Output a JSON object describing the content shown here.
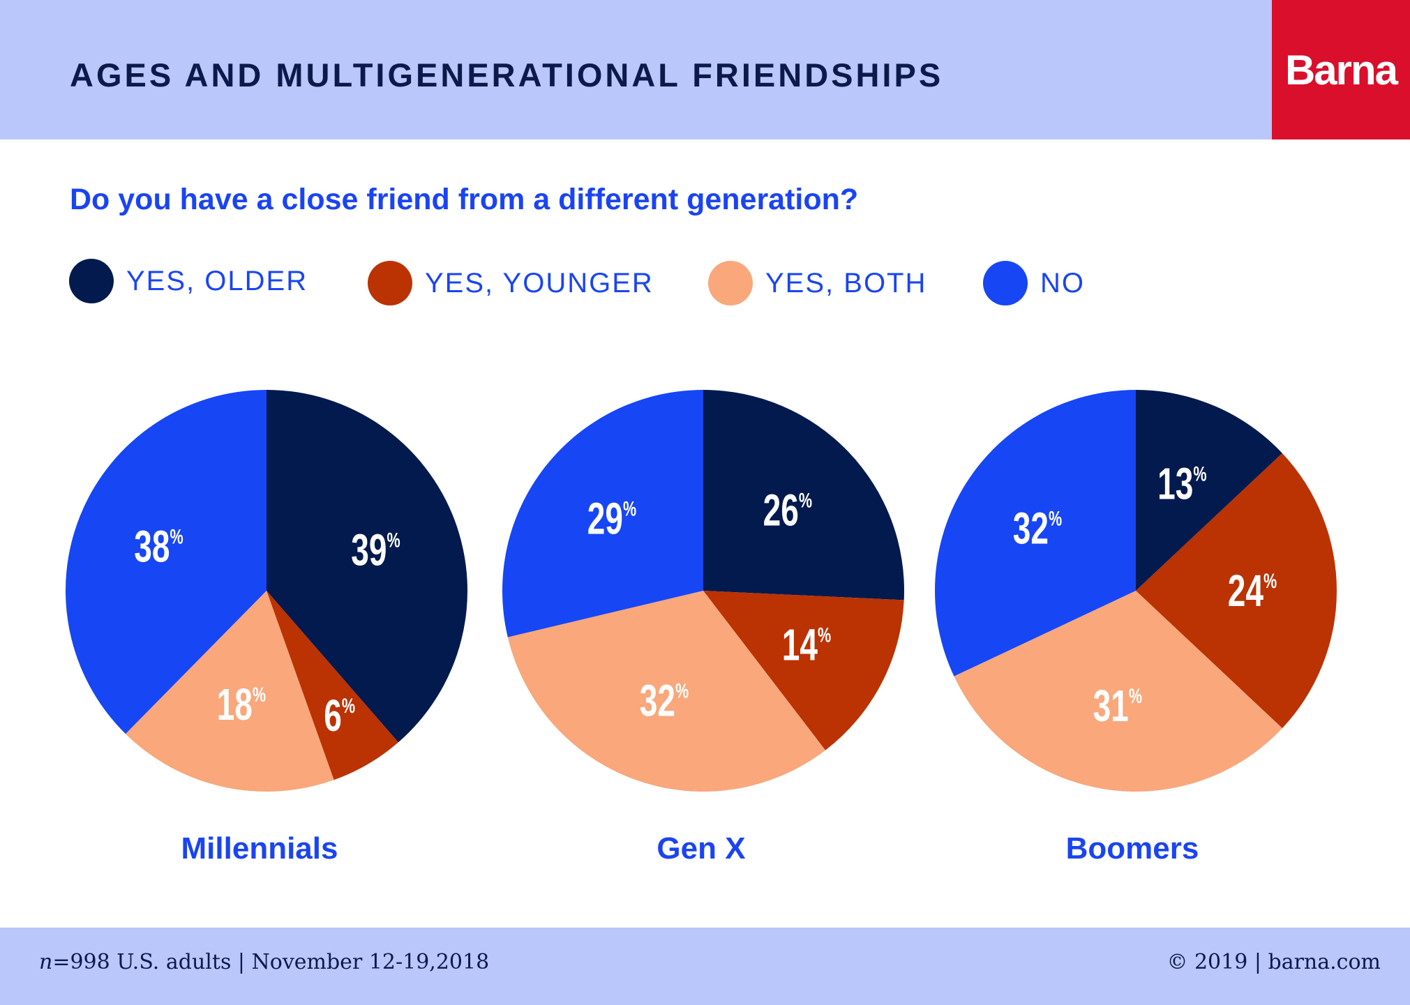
{
  "header": {
    "title": "AGES AND MULTIGENERATIONAL FRIENDSHIPS",
    "logo": "Barna"
  },
  "colors": {
    "yes_older": "#021a4d",
    "yes_younger": "#bb3203",
    "yes_both": "#f9a77b",
    "no": "#1746f5"
  },
  "chart_data": {
    "type": "pie",
    "title": "Do you have a close friend from a different generation?",
    "legend": [
      "YES, OLDER",
      "YES, YOUNGER",
      "YES, BOTH",
      "NO"
    ],
    "legend_placement": "top",
    "pies": [
      {
        "name": "Millennials",
        "values": [
          39,
          6,
          18,
          38
        ]
      },
      {
        "name": "Gen X",
        "values": [
          26,
          14,
          32,
          29
        ]
      },
      {
        "name": "Boomers",
        "values": [
          13,
          24,
          31,
          32
        ]
      }
    ]
  },
  "footer": {
    "left": "n=998 U.S. adults | November 12-19,2018",
    "left_n": "n",
    "left_rest": "=998 U.S. adults | November 12-19,2018",
    "right": "© 2019 | barna.com"
  }
}
